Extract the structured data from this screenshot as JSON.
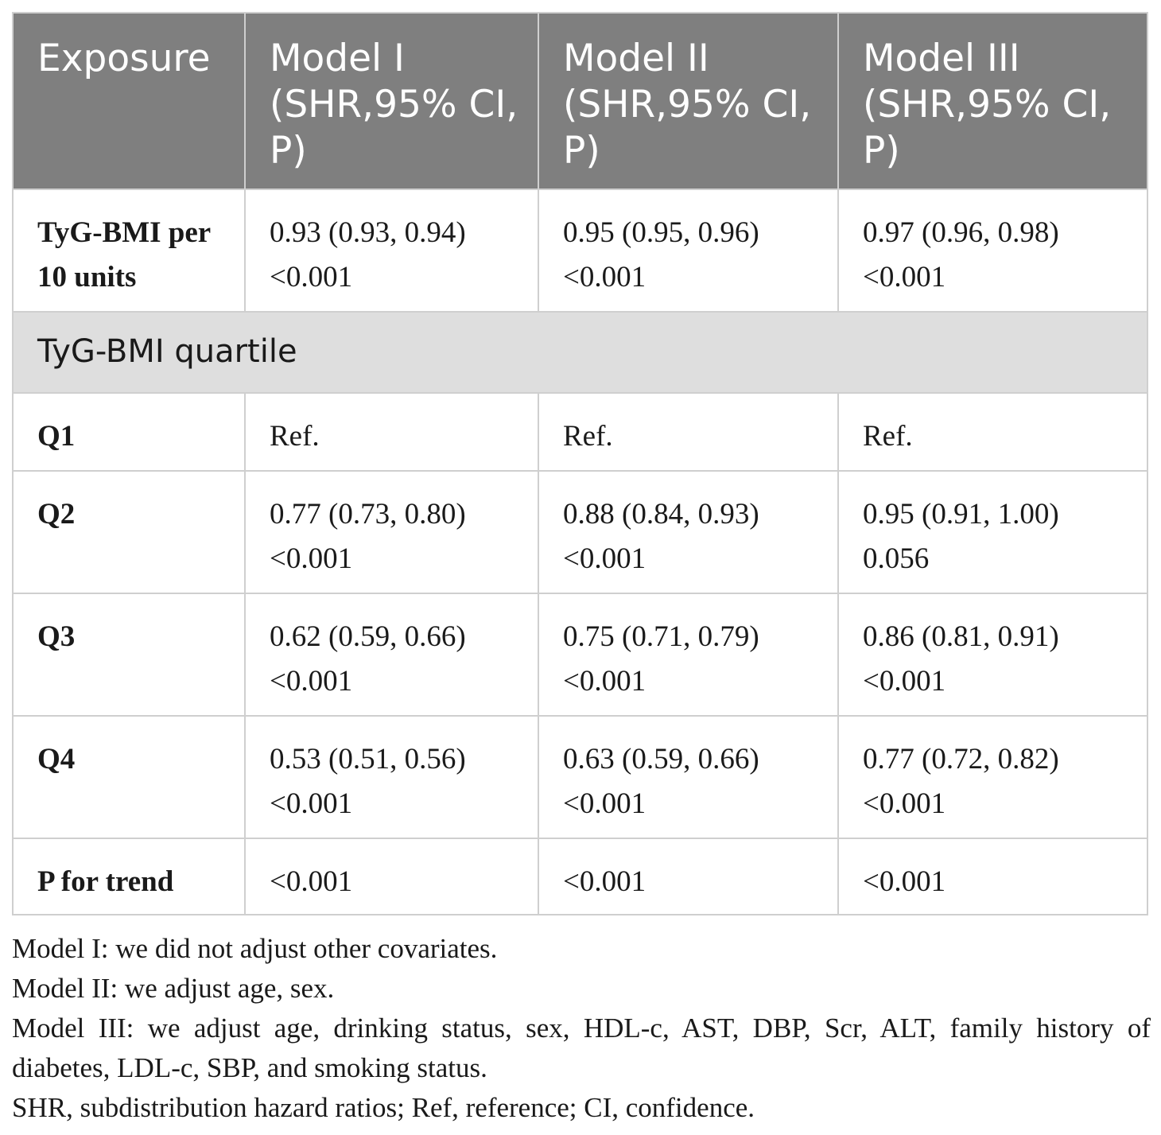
{
  "table": {
    "header": [
      "Exposure",
      "Model I (SHR,95% CI, P)",
      "Model II (SHR,95% CI, P)",
      "Model III (SHR,95% CI, P)"
    ],
    "rows": [
      {
        "label": "TyG-BMI per 10 units",
        "values": [
          "0.93 (0.93, 0.94) <0.001",
          "0.95 (0.95, 0.96) <0.001",
          "0.97 (0.96, 0.98) <0.001"
        ]
      },
      {
        "section": "TyG-BMI quartile"
      },
      {
        "label": "Q1",
        "values": [
          "Ref.",
          "Ref.",
          "Ref."
        ]
      },
      {
        "label": "Q2",
        "values": [
          "0.77 (0.73, 0.80) <0.001",
          "0.88 (0.84, 0.93) <0.001",
          "0.95 (0.91, 1.00) 0.056"
        ]
      },
      {
        "label": "Q3",
        "values": [
          "0.62 (0.59, 0.66) <0.001",
          "0.75 (0.71, 0.79) <0.001",
          "0.86 (0.81, 0.91) <0.001"
        ]
      },
      {
        "label": "Q4",
        "values": [
          "0.53 (0.51, 0.56) <0.001",
          "0.63 (0.59, 0.66) <0.001",
          "0.77 (0.72, 0.82) <0.001"
        ]
      },
      {
        "label": "P for trend",
        "values": [
          "<0.001",
          "<0.001",
          "<0.001"
        ]
      }
    ]
  },
  "notes": [
    "Model I: we did not adjust other covariates.",
    "Model II: we adjust age, sex.",
    "Model III: we adjust age, drinking status, sex, HDL-c, AST, DBP, Scr, ALT, family history of diabetes, LDL-c, SBP, and smoking status.",
    "SHR, subdistribution hazard ratios; Ref, reference; CI, confidence."
  ],
  "colors": {
    "header_bg": "#7f7f7f",
    "section_bg": "#dedede",
    "border": "#cfcfcf"
  }
}
